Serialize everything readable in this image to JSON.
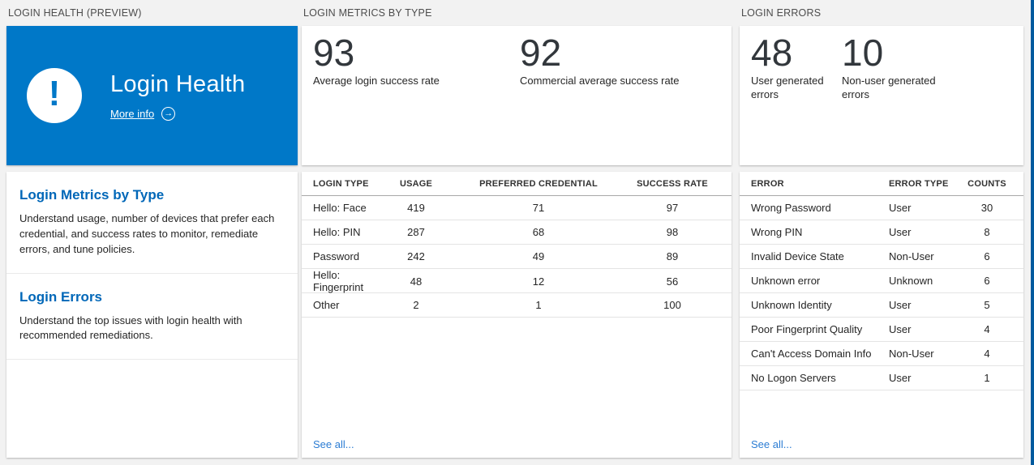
{
  "colors": {
    "background": "#f2f2f2",
    "tile_blue": "#0078c8",
    "heading_blue": "#0067b8",
    "link_blue": "#2b7cd3",
    "page_right_border_blue": "#005a9e",
    "stat_text": "#32373c"
  },
  "icons": {
    "alert_glyph": "!",
    "more_info_arrow_glyph": "→"
  },
  "login_health": {
    "section_title": "LOGIN HEALTH (PREVIEW)",
    "card_title": "Login Health",
    "more_info_label": "More info",
    "sections": [
      {
        "title": "Login Metrics by Type",
        "description": "Understand usage, number of devices that prefer each credential, and success rates to monitor, remediate errors, and tune policies."
      },
      {
        "title": "Login Errors",
        "description": "Understand the top issues with login health with recommended remediations."
      }
    ]
  },
  "login_metrics": {
    "section_title": "LOGIN METRICS BY TYPE",
    "stats": [
      {
        "value": "93",
        "label": "Average login success rate"
      },
      {
        "value": "92",
        "label": "Commercial average success rate"
      }
    ],
    "table": {
      "columns": [
        "LOGIN TYPE",
        "USAGE",
        "PREFERRED CREDENTIAL",
        "SUCCESS RATE"
      ],
      "rows": [
        [
          "Hello: Face",
          "419",
          "71",
          "97"
        ],
        [
          "Hello: PIN",
          "287",
          "68",
          "98"
        ],
        [
          "Password",
          "242",
          "49",
          "89"
        ],
        [
          "Hello: Fingerprint",
          "48",
          "12",
          "56"
        ],
        [
          "Other",
          "2",
          "1",
          "100"
        ]
      ]
    },
    "see_all_label": "See all..."
  },
  "login_errors": {
    "section_title": "LOGIN ERRORS",
    "stats": [
      {
        "value": "48",
        "label": "User generated errors"
      },
      {
        "value": "10",
        "label": "Non-user generated errors"
      }
    ],
    "table": {
      "columns": [
        "ERROR",
        "ERROR TYPE",
        "COUNTS"
      ],
      "rows": [
        [
          "Wrong Password",
          "User",
          "30"
        ],
        [
          "Wrong PIN",
          "User",
          "8"
        ],
        [
          "Invalid Device State",
          "Non-User",
          "6"
        ],
        [
          "Unknown error",
          "Unknown",
          "6"
        ],
        [
          "Unknown Identity",
          "User",
          "5"
        ],
        [
          "Poor Fingerprint Quality",
          "User",
          "4"
        ],
        [
          "Can't Access Domain Info",
          "Non-User",
          "4"
        ],
        [
          "No Logon Servers",
          "User",
          "1"
        ]
      ]
    },
    "see_all_label": "See all..."
  }
}
